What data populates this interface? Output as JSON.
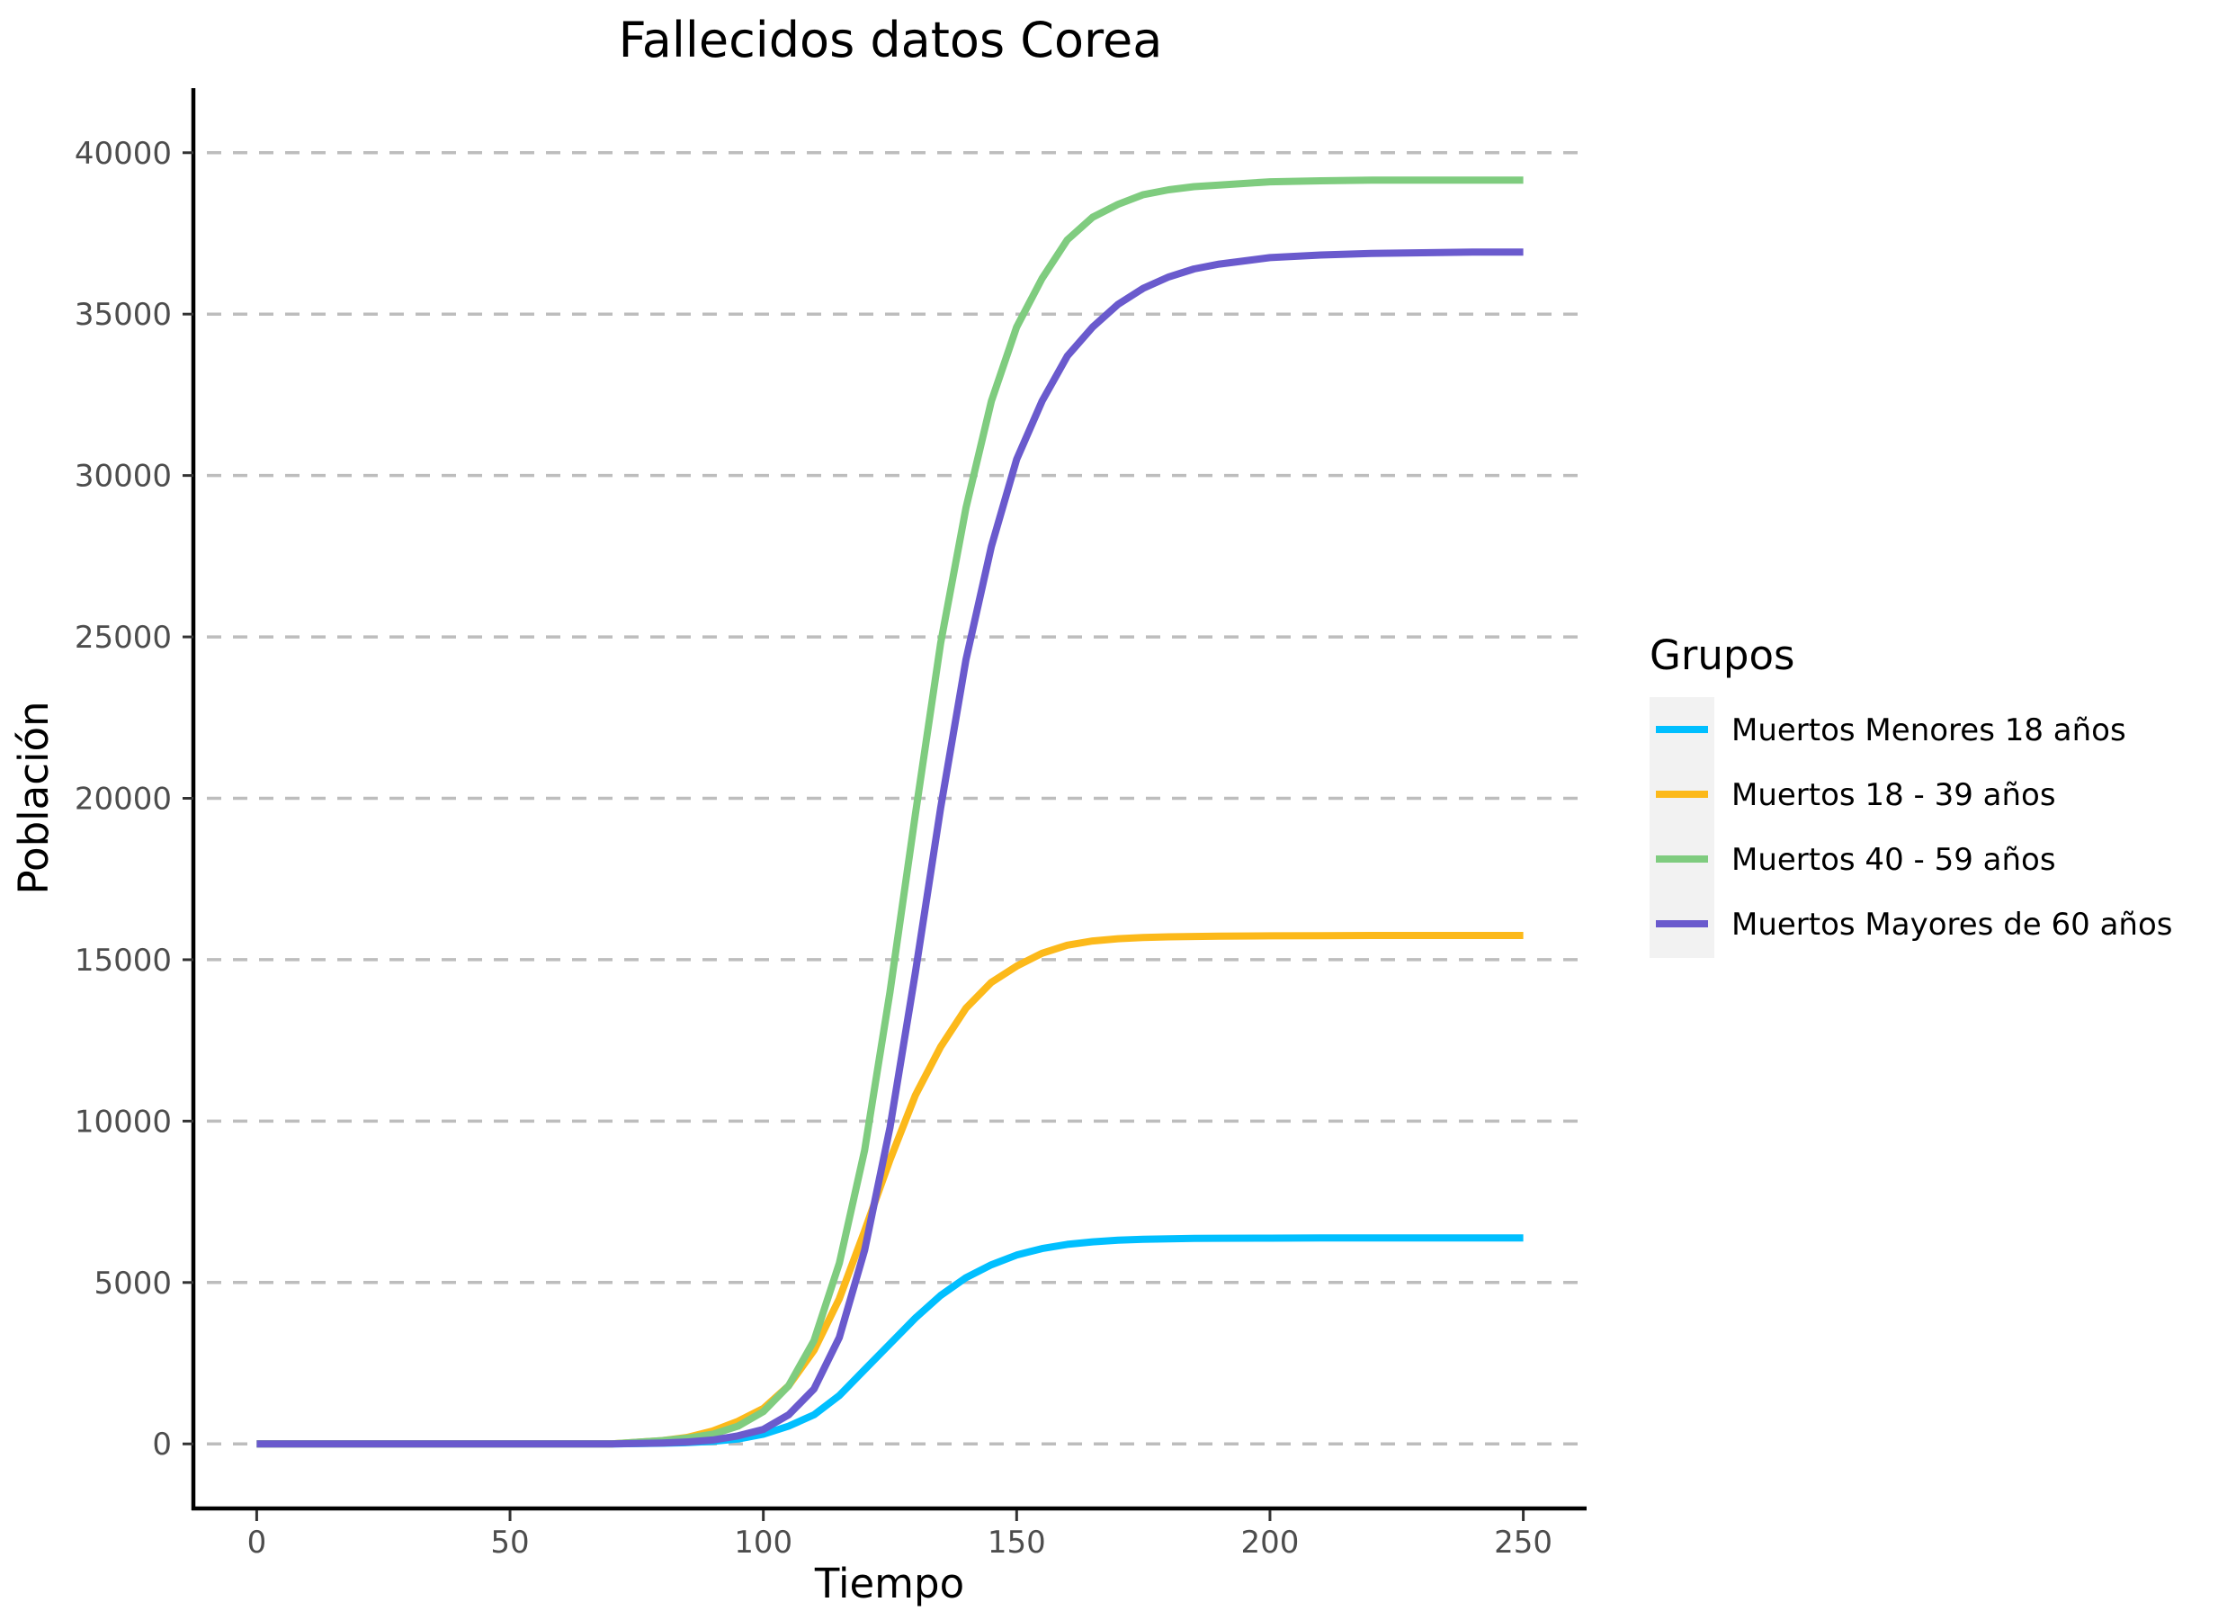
{
  "chart_data": {
    "type": "line",
    "title": "Fallecidos datos Corea",
    "xlabel": "Tiempo",
    "ylabel": "Población",
    "xlim": [
      -12.5,
      262.5
    ],
    "ylim": [
      -2000,
      42000
    ],
    "xticks": [
      0,
      50,
      100,
      150,
      200,
      250
    ],
    "yticks": [
      0,
      5000,
      10000,
      15000,
      20000,
      25000,
      30000,
      35000,
      40000
    ],
    "grid": "horizontal dashed",
    "legend": {
      "title": "Grupos",
      "placement": "right"
    },
    "x": [
      0,
      10,
      20,
      30,
      40,
      50,
      60,
      70,
      80,
      85,
      90,
      95,
      100,
      105,
      110,
      115,
      120,
      125,
      130,
      135,
      140,
      145,
      150,
      155,
      160,
      165,
      170,
      175,
      180,
      185,
      190,
      200,
      210,
      220,
      230,
      240,
      250
    ],
    "series": [
      {
        "name": "Muertos Menores 18 años",
        "color": "#00bfff",
        "values": [
          0,
          0,
          0,
          0,
          0,
          0,
          0,
          0,
          20,
          40,
          80,
          150,
          300,
          550,
          900,
          1500,
          2300,
          3100,
          3900,
          4600,
          5150,
          5550,
          5850,
          6050,
          6180,
          6260,
          6310,
          6340,
          6355,
          6365,
          6370,
          6375,
          6378,
          6380,
          6380,
          6380,
          6380
        ]
      },
      {
        "name": "Muertos 18 - 39 años",
        "color": "#fcb91a",
        "values": [
          0,
          0,
          0,
          0,
          0,
          0,
          0,
          0,
          100,
          200,
          400,
          700,
          1100,
          1800,
          2900,
          4500,
          6600,
          8800,
          10800,
          12300,
          13500,
          14300,
          14800,
          15200,
          15450,
          15580,
          15650,
          15690,
          15710,
          15720,
          15730,
          15740,
          15745,
          15750,
          15750,
          15750,
          15750
        ]
      },
      {
        "name": "Muertos 40 - 59 años",
        "color": "#7fcc7f",
        "values": [
          0,
          0,
          0,
          0,
          0,
          0,
          0,
          0,
          100,
          180,
          300,
          550,
          1000,
          1800,
          3200,
          5600,
          9100,
          14000,
          19500,
          24800,
          29000,
          32300,
          34600,
          36100,
          37300,
          38000,
          38400,
          38700,
          38850,
          38950,
          39000,
          39100,
          39130,
          39150,
          39150,
          39150,
          39150
        ]
      },
      {
        "name": "Muertos Mayores de 60 años",
        "color": "#6a5acd",
        "values": [
          0,
          0,
          0,
          0,
          0,
          0,
          0,
          0,
          30,
          60,
          120,
          250,
          450,
          900,
          1700,
          3300,
          6000,
          9800,
          14600,
          19700,
          24300,
          27800,
          30500,
          32300,
          33700,
          34600,
          35300,
          35800,
          36150,
          36400,
          36550,
          36750,
          36830,
          36880,
          36900,
          36920,
          36920
        ]
      }
    ]
  }
}
